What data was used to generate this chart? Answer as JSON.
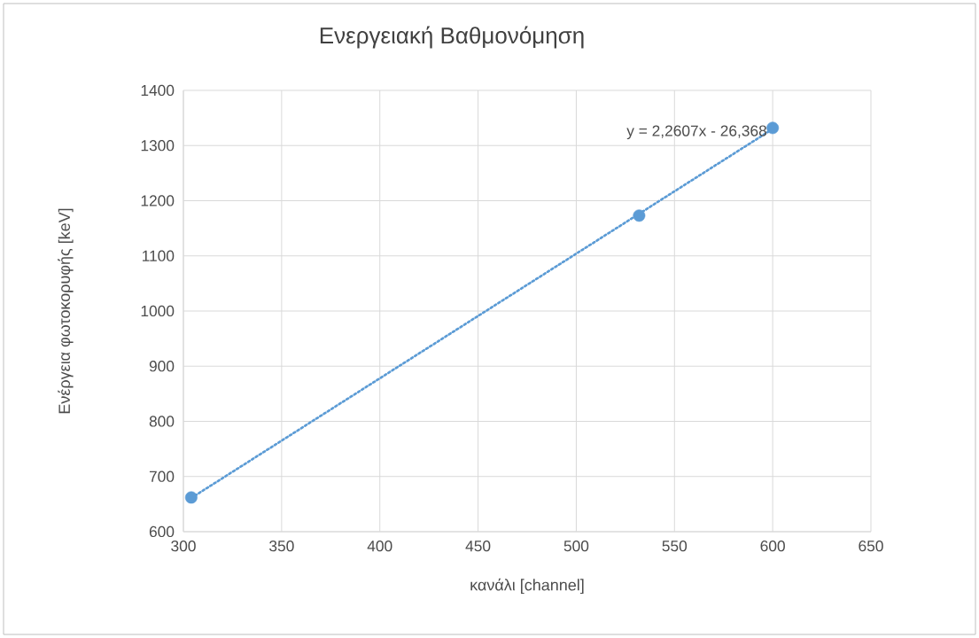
{
  "chart_data": {
    "type": "scatter",
    "title": "Ενεργειακή Βαθμονόμηση",
    "xlabel": "κανάλι [channel]",
    "ylabel": "Ενέργεια φωτοκορυφής [keV]",
    "series": [
      {
        "color": "#5b9bd5",
        "x": [
          304,
          532,
          600
        ],
        "values": [
          662,
          1173,
          1332
        ],
        "marker": "circle"
      },
      {
        "type": "line",
        "color": "#5b9bd5",
        "x": [
          304,
          600
        ],
        "values": [
          661,
          1330
        ],
        "marker": "none",
        "line_style": "dotted"
      }
    ],
    "annotations": [
      "y = 2,2607x - 26,368"
    ],
    "xlim": [
      300,
      650
    ],
    "xticks": [
      300,
      350,
      400,
      450,
      500,
      550,
      600,
      650
    ],
    "ylim": [
      600,
      1400
    ],
    "yticks": [
      600,
      700,
      800,
      900,
      1000,
      1100,
      1200,
      1300,
      1400
    ],
    "grid": true
  }
}
